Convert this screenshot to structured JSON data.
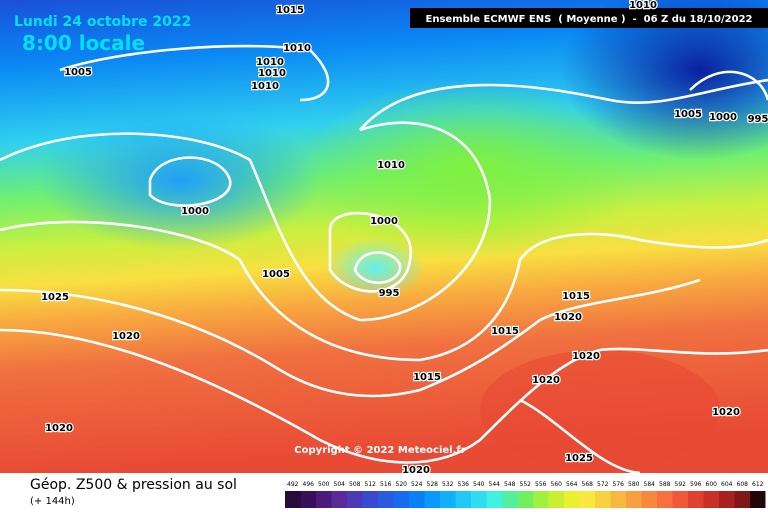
{
  "header": {
    "date": "Lundi 24 octobre 2022",
    "time": "8:00 locale",
    "model": "Ensemble ECMWF ENS  ( Moyenne )  -  06 Z du 18/10/2022"
  },
  "isobar_labels": [
    "1015",
    "1010",
    "1010",
    "1010",
    "1010",
    "1005",
    "1010",
    "1005",
    "1000",
    "995",
    "1010",
    "1000",
    "1000",
    "1005",
    "995",
    "1025",
    "1020",
    "1015",
    "1020",
    "1015",
    "1020",
    "1015",
    "1020",
    "1020",
    "1020",
    "1025",
    "1020"
  ],
  "copyright": "Copyright © 2022 Meteociel.fr",
  "footer": {
    "title": "Géop. Z500 & pression au sol",
    "lead": "(+ 144h)"
  },
  "legend": {
    "values": [
      492,
      496,
      500,
      504,
      508,
      512,
      516,
      520,
      524,
      528,
      532,
      536,
      540,
      544,
      548,
      552,
      556,
      560,
      564,
      568,
      572,
      576,
      580,
      584,
      588,
      592,
      596,
      600,
      604,
      608,
      612
    ],
    "colors": [
      "#2a0a3a",
      "#3a0f5a",
      "#4b1a7a",
      "#5a2a9a",
      "#4a3ab8",
      "#3a4ad0",
      "#2a5ae0",
      "#1a6af0",
      "#0a80f8",
      "#0a98fa",
      "#10b0fa",
      "#20c8f8",
      "#30dcf0",
      "#40f0e0",
      "#50f0a0",
      "#70f060",
      "#a0f040",
      "#c8f030",
      "#e8f030",
      "#f8e840",
      "#f8d040",
      "#f8b840",
      "#f8a040",
      "#f88840",
      "#f87040",
      "#f05838",
      "#e04030",
      "#c83028",
      "#a82020",
      "#801818",
      "#200808"
    ]
  }
}
